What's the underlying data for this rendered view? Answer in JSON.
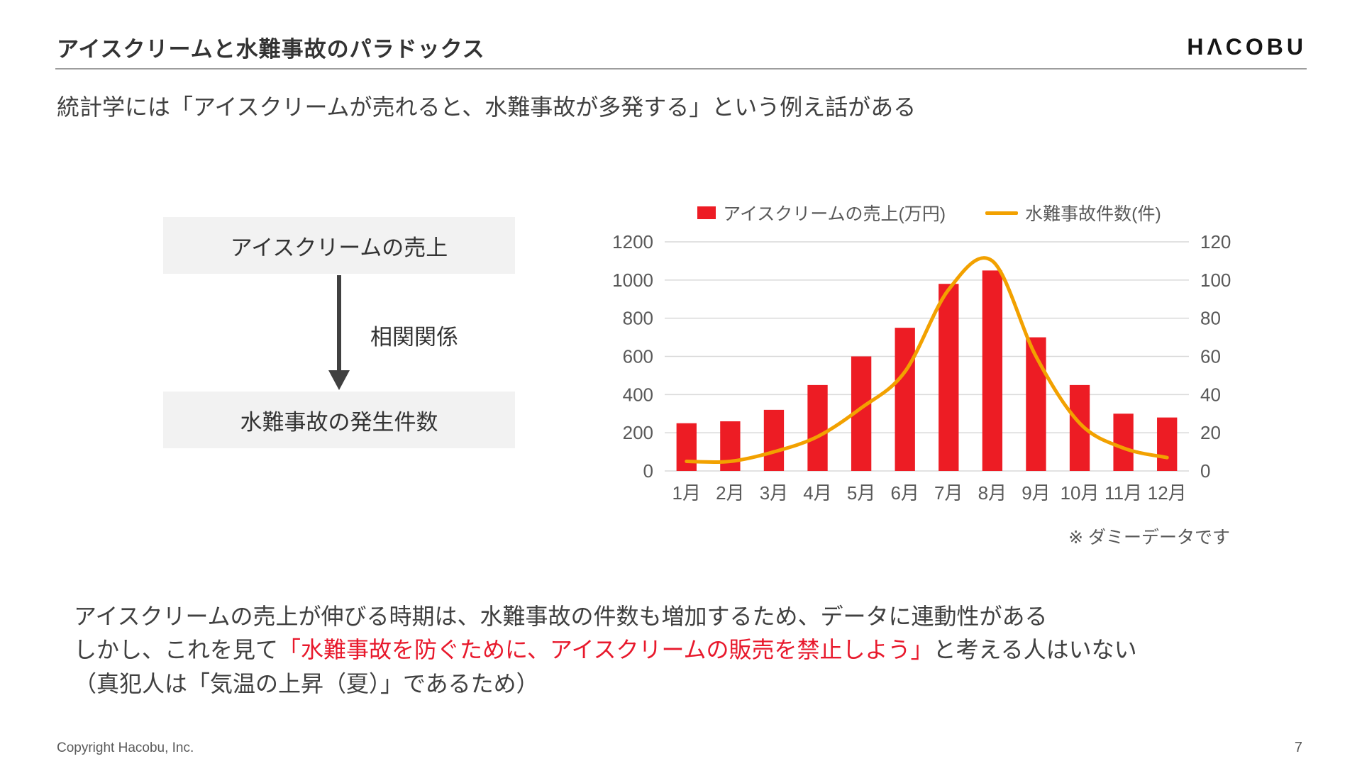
{
  "header": {
    "title": "アイスクリームと水難事故のパラドックス",
    "logo": "HΛCOBU"
  },
  "lead": "統計学には「アイスクリームが売れると、水難事故が多発する」という例え話がある",
  "diagram": {
    "box_top": "アイスクリームの売上",
    "arrow_label": "相関関係",
    "box_bottom": "水難事故の発生件数"
  },
  "chart_data": {
    "type": "bar",
    "subtype": "combo-bar-line",
    "title": "",
    "categories": [
      "1月",
      "2月",
      "3月",
      "4月",
      "5月",
      "6月",
      "7月",
      "8月",
      "9月",
      "10月",
      "11月",
      "12月"
    ],
    "series": [
      {
        "name": "アイスクリームの売上(万円)",
        "type": "bar",
        "axis": "left",
        "color": "#ED1C24",
        "values": [
          250,
          260,
          320,
          450,
          600,
          750,
          980,
          1050,
          700,
          450,
          300,
          280
        ]
      },
      {
        "name": "水難事故件数(件)",
        "type": "line",
        "axis": "right",
        "color": "#F2A100",
        "values": [
          5,
          5,
          10,
          18,
          33,
          52,
          95,
          110,
          60,
          25,
          12,
          7
        ]
      }
    ],
    "left_axis": {
      "min": 0,
      "max": 1200,
      "step": 200
    },
    "right_axis": {
      "min": 0,
      "max": 120,
      "step": 20
    },
    "grid": true,
    "gridline_color": "#d9d9d9",
    "tick_color": "#595959",
    "legend_position": "top",
    "note": "※ ダミーデータです"
  },
  "body": {
    "line1": "アイスクリームの売上が伸びる時期は、水難事故の件数も増加するため、データに連動性がある",
    "line2_pre": "しかし、これを見て",
    "line2_red": "「水難事故を防ぐために、アイスクリームの販売を禁止しよう」",
    "line2_post": "と考える人はいない",
    "line3": "（真犯人は「気温の上昇（夏）」であるため）",
    "red_color": "#E8192C"
  },
  "footer": {
    "copyright": "Copyright Hacobu, Inc.",
    "page": "7"
  }
}
